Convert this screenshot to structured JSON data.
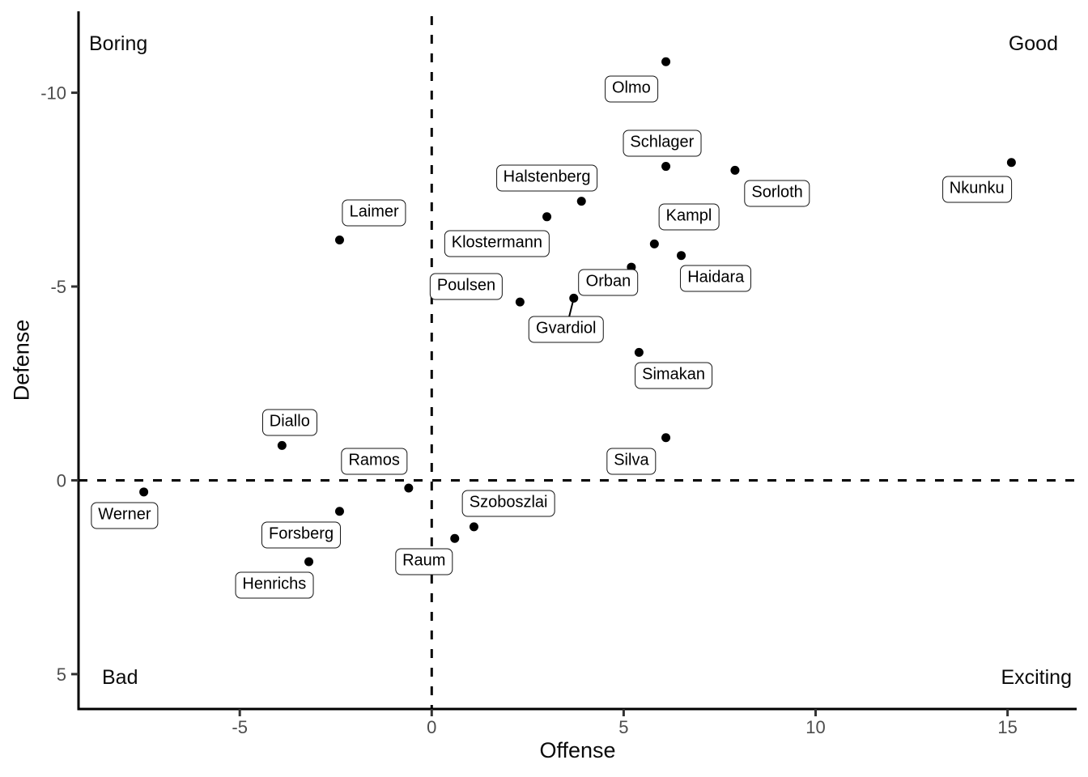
{
  "chart_data": {
    "type": "scatter",
    "title": "",
    "xlabel": "Offense",
    "ylabel": "Defense",
    "x_ticks": [
      -5,
      0,
      5,
      10,
      15
    ],
    "y_ticks": [
      -10,
      -5,
      0,
      5
    ],
    "xlim": [
      -9.2,
      16.8
    ],
    "ylim": [
      -12.1,
      5.9
    ],
    "y_orientation": "values increase downward (negative at top)",
    "grid": false,
    "legend": "none",
    "point_color": "#000000",
    "tick_label_color": "#4d4d4d",
    "axis_color": "#000000",
    "reference_lines": [
      {
        "axis": "x",
        "value": 0,
        "style": "dashed"
      },
      {
        "axis": "y",
        "value": 0,
        "style": "dashed"
      }
    ],
    "quadrant_labels": {
      "top_left": "Boring",
      "top_right": "Good",
      "bottom_left": "Bad",
      "bottom_right": "Exciting"
    },
    "points": [
      {
        "name": "Olmo",
        "x": 6.1,
        "y": -10.8,
        "label_x": 5.2,
        "label_y": -10.1
      },
      {
        "name": "Nkunku",
        "x": 15.1,
        "y": -8.2,
        "label_x": 14.2,
        "label_y": -7.5
      },
      {
        "name": "Schlager",
        "x": 6.1,
        "y": -8.1,
        "label_x": 6.0,
        "label_y": -8.7
      },
      {
        "name": "Sorloth",
        "x": 7.9,
        "y": -8.0,
        "label_x": 9.0,
        "label_y": -7.4
      },
      {
        "name": "Halstenberg",
        "x": 3.9,
        "y": -7.2,
        "label_x": 3.0,
        "label_y": -7.8
      },
      {
        "name": "Klostermann",
        "x": 3.0,
        "y": -6.8,
        "label_x": 1.7,
        "label_y": -6.1
      },
      {
        "name": "Laimer",
        "x": -2.4,
        "y": -6.2,
        "label_x": -1.5,
        "label_y": -6.9
      },
      {
        "name": "Kampl",
        "x": 5.8,
        "y": -6.1,
        "label_x": 6.7,
        "label_y": -6.8
      },
      {
        "name": "Haidara",
        "x": 6.5,
        "y": -5.8,
        "label_x": 7.4,
        "label_y": -5.2
      },
      {
        "name": "Orban",
        "x": 5.2,
        "y": -5.5,
        "label_x": 4.6,
        "label_y": -5.1
      },
      {
        "name": "Gvardiol",
        "x": 3.7,
        "y": -4.7,
        "label_x": 3.5,
        "label_y": -3.9,
        "leader": true
      },
      {
        "name": "Poulsen",
        "x": 2.3,
        "y": -4.6,
        "label_x": 0.9,
        "label_y": -5.0
      },
      {
        "name": "Simakan",
        "x": 5.4,
        "y": -3.3,
        "label_x": 6.3,
        "label_y": -2.7
      },
      {
        "name": "Silva",
        "x": 6.1,
        "y": -1.1,
        "label_x": 5.2,
        "label_y": -0.5
      },
      {
        "name": "Diallo",
        "x": -3.9,
        "y": -0.9,
        "label_x": -3.7,
        "label_y": -1.5
      },
      {
        "name": "Ramos",
        "x": -0.6,
        "y": 0.2,
        "label_x": -1.5,
        "label_y": -0.5
      },
      {
        "name": "Werner",
        "x": -7.5,
        "y": 0.3,
        "label_x": -8.0,
        "label_y": 0.9
      },
      {
        "name": "Forsberg",
        "x": -2.4,
        "y": 0.8,
        "label_x": -3.4,
        "label_y": 1.4
      },
      {
        "name": "Szoboszlai",
        "x": 1.1,
        "y": 1.2,
        "label_x": 2.0,
        "label_y": 0.6
      },
      {
        "name": "Raum",
        "x": 0.6,
        "y": 1.5,
        "label_x": -0.2,
        "label_y": 2.1
      },
      {
        "name": "Henrichs",
        "x": -3.2,
        "y": 2.1,
        "label_x": -4.1,
        "label_y": 2.7
      }
    ]
  }
}
